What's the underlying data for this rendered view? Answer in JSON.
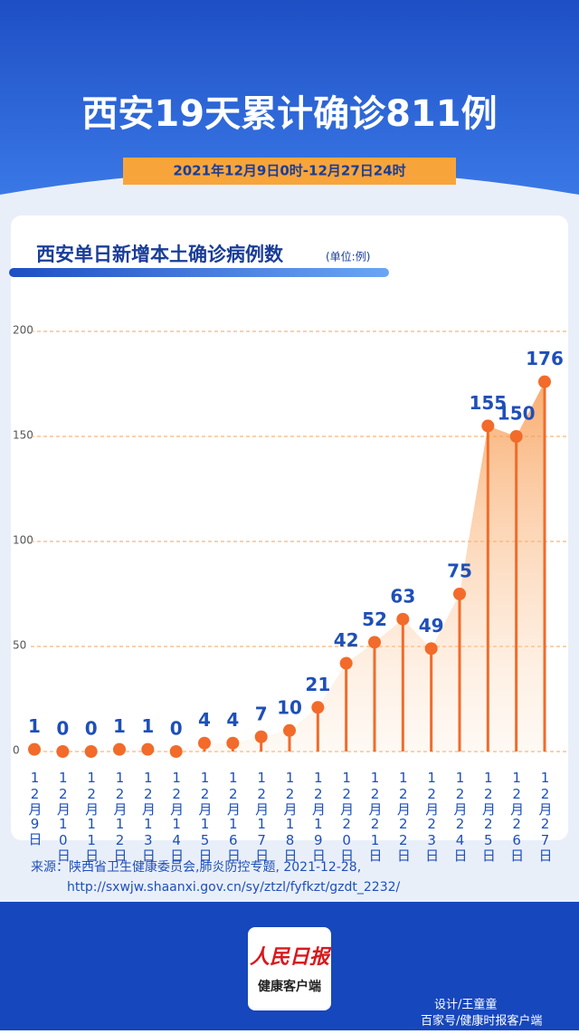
{
  "header": {
    "title": "西安19天累计确诊811例",
    "subtitle": "2021年12月9日0时-12月27日24时"
  },
  "chart_data": {
    "type": "lollipop",
    "title": "西安单日新增本土确诊病例数",
    "unit": "(单位:例)",
    "categories": [
      "12月9日",
      "12月10日",
      "12月11日",
      "12月12日",
      "12月13日",
      "12月14日",
      "12月15日",
      "12月16日",
      "12月17日",
      "12月18日",
      "12月19日",
      "12月20日",
      "12月21日",
      "12月22日",
      "12月23日",
      "12月24日",
      "12月25日",
      "12月26日",
      "12月27日"
    ],
    "values": [
      1,
      0,
      0,
      1,
      1,
      0,
      4,
      4,
      7,
      10,
      21,
      42,
      52,
      63,
      49,
      75,
      155,
      150,
      176
    ],
    "color": "#f26b2a",
    "ylim": [
      0,
      200
    ],
    "yticks": [
      0,
      50,
      100,
      150,
      200
    ],
    "grid": true
  },
  "source": {
    "line1": "来源：陕西省卫生健康委员会,肺炎防控专题, 2021-12-28,",
    "line2": "http://sxwjw.shaanxi.gov.cn/sy/ztzl/fyfkzt/gzdt_2232/"
  },
  "footer": {
    "logo_top": "人民日报",
    "logo_bottom": "健康客户端",
    "designer": "设计/王童童",
    "watermark": "百家号/健康时报客户端"
  }
}
